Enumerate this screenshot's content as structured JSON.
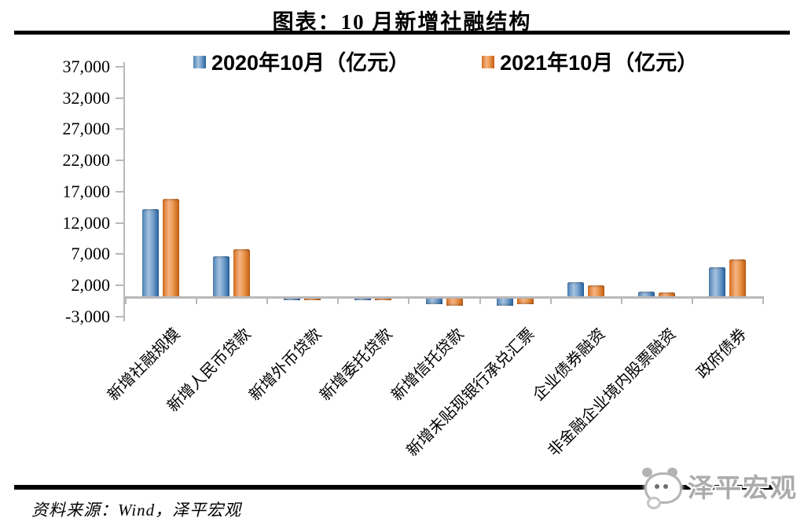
{
  "page": {
    "title": "图表：10 月新增社融结构",
    "source_note": "资料来源：Wind，泽平宏观",
    "watermark": "泽平宏观"
  },
  "chart_data": {
    "type": "bar",
    "title": "图表：10 月新增社融结构",
    "categories": [
      "新增社融规模",
      "新增人民币贷款",
      "新增外币贷款",
      "新增委托贷款",
      "新增信托贷款",
      "新增未贴现银行承兑汇票",
      "企业债券融资",
      "非金融企业境内股票融资",
      "政府债券"
    ],
    "series": [
      {
        "name": "2020年10月（亿元）",
        "color": "#4E81BD",
        "values": [
          14194,
          6663,
          -89,
          -174,
          -875,
          -1124,
          2522,
          927,
          4931
        ]
      },
      {
        "name": "2021年10月（亿元）",
        "color": "#ED7D31",
        "values": [
          15900,
          7752,
          -34,
          -173,
          -1061,
          -886,
          2030,
          846,
          6167
        ]
      }
    ],
    "xlabel": "",
    "ylabel": "亿元",
    "ylim": [
      -3000,
      37000
    ],
    "yticks": [
      37000,
      32000,
      27000,
      22000,
      17000,
      12000,
      7000,
      2000,
      -3000
    ],
    "grid": false,
    "legend_position": "top"
  }
}
